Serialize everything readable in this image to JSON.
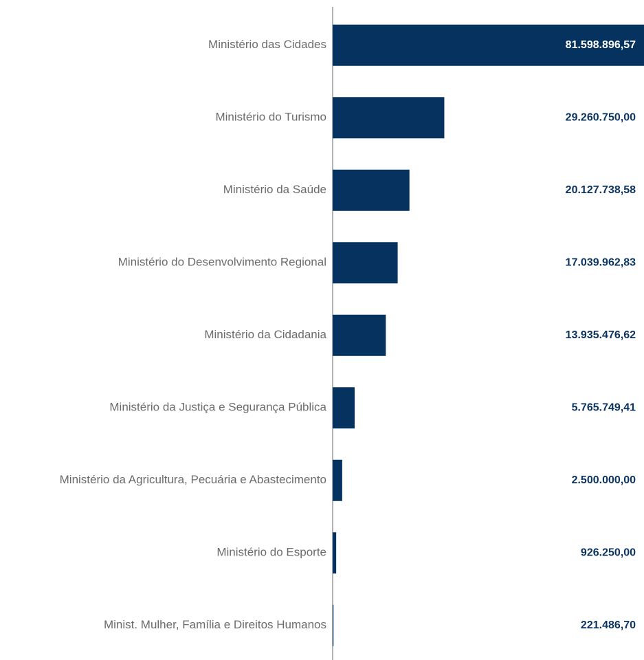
{
  "chart_data": {
    "type": "bar",
    "orientation": "horizontal",
    "categories": [
      "Ministério das Cidades",
      "Ministério do Turismo",
      "Ministério da Saúde",
      "Ministério do Desenvolvimento Regional",
      "Ministério da Cidadania",
      "Ministério da Justiça e Segurança Pública",
      "Ministério da Agricultura, Pecuária e Abastecimento",
      "Ministério do Esporte",
      "Minist. Mulher, Família e Direitos Humanos"
    ],
    "values": [
      81598896.57,
      29260750.0,
      20127738.58,
      17039962.83,
      13935476.62,
      5765749.41,
      2500000.0,
      926250.0,
      221486.7
    ],
    "value_labels": [
      "81.598.896,57",
      "29.260.750,00",
      "20.127.738,58",
      "17.039.962,83",
      "13.935.476,62",
      "5.765.749,41",
      "2.500.000,00",
      "926.250,00",
      "221.486,70"
    ],
    "color": "#05325e"
  }
}
